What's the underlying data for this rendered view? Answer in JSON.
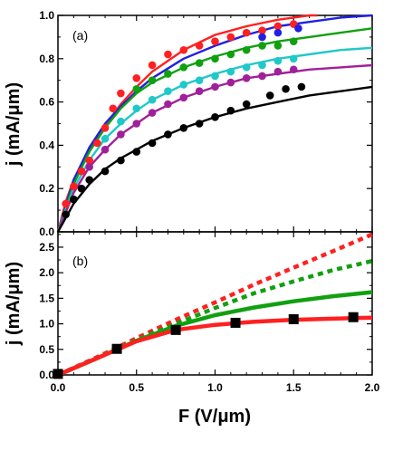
{
  "chart_data": [
    {
      "type": "scatter",
      "panel_label": "(a)",
      "xlabel": "",
      "ylabel": "j  (mA/μm)",
      "xlim": [
        0,
        2.0
      ],
      "ylim": [
        0,
        1.0
      ],
      "xticks": [
        "0.0",
        "0.5",
        "1.0",
        "1.5",
        "2.0"
      ],
      "yticks": [
        "0.0",
        "0.2",
        "0.4",
        "0.6",
        "0.8",
        "1.0"
      ],
      "grid": false,
      "series": [
        {
          "color": "#ff2020",
          "points": [
            [
              0.05,
              0.13
            ],
            [
              0.1,
              0.21
            ],
            [
              0.15,
              0.28
            ],
            [
              0.2,
              0.33
            ],
            [
              0.25,
              0.41
            ],
            [
              0.3,
              0.48
            ],
            [
              0.35,
              0.57
            ],
            [
              0.4,
              0.64
            ],
            [
              0.5,
              0.71
            ],
            [
              0.6,
              0.77
            ],
            [
              0.7,
              0.82
            ],
            [
              0.8,
              0.84
            ],
            [
              0.9,
              0.86
            ],
            [
              1.0,
              0.88
            ],
            [
              1.1,
              0.9
            ],
            [
              1.2,
              0.92
            ],
            [
              1.3,
              0.93
            ],
            [
              1.4,
              0.95
            ],
            [
              1.5,
              0.96
            ]
          ],
          "fit": [
            [
              0,
              0
            ],
            [
              0.05,
              0.14
            ],
            [
              0.1,
              0.24
            ],
            [
              0.2,
              0.38
            ],
            [
              0.3,
              0.49
            ],
            [
              0.4,
              0.59
            ],
            [
              0.5,
              0.67
            ],
            [
              0.6,
              0.74
            ],
            [
              0.8,
              0.84
            ],
            [
              1.0,
              0.91
            ],
            [
              1.2,
              0.95
            ],
            [
              1.4,
              0.98
            ],
            [
              1.6,
              1.0
            ],
            [
              1.65,
              1.0
            ]
          ]
        },
        {
          "color": "#2020e0",
          "points": [
            [
              1.3,
              0.9
            ],
            [
              1.4,
              0.92
            ],
            [
              1.53,
              0.94
            ]
          ],
          "fit": [
            [
              0,
              0
            ],
            [
              0.1,
              0.24
            ],
            [
              0.2,
              0.39
            ],
            [
              0.3,
              0.5
            ],
            [
              0.4,
              0.58
            ],
            [
              0.5,
              0.65
            ],
            [
              0.6,
              0.71
            ],
            [
              0.8,
              0.8
            ],
            [
              1.0,
              0.86
            ],
            [
              1.2,
              0.91
            ],
            [
              1.4,
              0.95
            ],
            [
              1.6,
              0.97
            ],
            [
              1.8,
              0.99
            ],
            [
              2.0,
              1.0
            ]
          ]
        },
        {
          "color": "#10a010",
          "points": [
            [
              0.5,
              0.66
            ],
            [
              0.6,
              0.7
            ],
            [
              0.7,
              0.73
            ],
            [
              0.8,
              0.76
            ],
            [
              0.9,
              0.78
            ],
            [
              1.0,
              0.8
            ],
            [
              1.1,
              0.82
            ],
            [
              1.2,
              0.84
            ],
            [
              1.3,
              0.86
            ],
            [
              1.4,
              0.86
            ],
            [
              1.5,
              0.88
            ]
          ],
          "fit": [
            [
              0,
              0
            ],
            [
              0.1,
              0.22
            ],
            [
              0.2,
              0.37
            ],
            [
              0.3,
              0.48
            ],
            [
              0.4,
              0.57
            ],
            [
              0.5,
              0.64
            ],
            [
              0.6,
              0.69
            ],
            [
              0.8,
              0.76
            ],
            [
              1.0,
              0.81
            ],
            [
              1.2,
              0.85
            ],
            [
              1.4,
              0.88
            ],
            [
              1.6,
              0.9
            ],
            [
              1.8,
              0.92
            ],
            [
              2.0,
              0.94
            ]
          ]
        },
        {
          "color": "#20c8c8",
          "points": [
            [
              0.3,
              0.43
            ],
            [
              0.4,
              0.51
            ],
            [
              0.5,
              0.57
            ],
            [
              0.6,
              0.61
            ],
            [
              0.7,
              0.65
            ],
            [
              0.8,
              0.68
            ],
            [
              0.9,
              0.7
            ],
            [
              1.0,
              0.72
            ],
            [
              1.1,
              0.74
            ],
            [
              1.2,
              0.76
            ],
            [
              1.3,
              0.77
            ],
            [
              1.4,
              0.79
            ],
            [
              1.5,
              0.8
            ]
          ],
          "fit": [
            [
              0,
              0
            ],
            [
              0.1,
              0.2
            ],
            [
              0.2,
              0.33
            ],
            [
              0.3,
              0.43
            ],
            [
              0.4,
              0.5
            ],
            [
              0.5,
              0.56
            ],
            [
              0.6,
              0.61
            ],
            [
              0.8,
              0.68
            ],
            [
              1.0,
              0.73
            ],
            [
              1.2,
              0.77
            ],
            [
              1.4,
              0.8
            ],
            [
              1.6,
              0.82
            ],
            [
              1.8,
              0.84
            ],
            [
              2.0,
              0.85
            ]
          ]
        },
        {
          "color": "#a0209a",
          "points": [
            [
              0.2,
              0.3
            ],
            [
              0.3,
              0.38
            ],
            [
              0.4,
              0.45
            ],
            [
              0.5,
              0.5
            ],
            [
              0.6,
              0.55
            ],
            [
              0.7,
              0.59
            ],
            [
              0.8,
              0.62
            ],
            [
              0.9,
              0.65
            ],
            [
              1.0,
              0.67
            ],
            [
              1.1,
              0.69
            ],
            [
              1.2,
              0.71
            ],
            [
              1.3,
              0.72
            ],
            [
              1.4,
              0.74
            ],
            [
              1.5,
              0.75
            ]
          ],
          "fit": [
            [
              0,
              0
            ],
            [
              0.1,
              0.18
            ],
            [
              0.2,
              0.3
            ],
            [
              0.3,
              0.38
            ],
            [
              0.4,
              0.45
            ],
            [
              0.5,
              0.5
            ],
            [
              0.6,
              0.55
            ],
            [
              0.8,
              0.62
            ],
            [
              1.0,
              0.67
            ],
            [
              1.2,
              0.71
            ],
            [
              1.4,
              0.73
            ],
            [
              1.6,
              0.75
            ],
            [
              1.8,
              0.76
            ],
            [
              2.0,
              0.77
            ]
          ]
        },
        {
          "color": "#000000",
          "points": [
            [
              0.05,
              0.08
            ],
            [
              0.1,
              0.15
            ],
            [
              0.15,
              0.2
            ],
            [
              0.2,
              0.24
            ],
            [
              0.3,
              0.28
            ],
            [
              0.4,
              0.33
            ],
            [
              0.5,
              0.37
            ],
            [
              0.6,
              0.41
            ],
            [
              0.7,
              0.45
            ],
            [
              0.8,
              0.48
            ],
            [
              0.9,
              0.5
            ],
            [
              1.0,
              0.53
            ],
            [
              1.1,
              0.56
            ],
            [
              1.2,
              0.59
            ],
            [
              1.35,
              0.63
            ],
            [
              1.45,
              0.66
            ],
            [
              1.55,
              0.67
            ]
          ],
          "fit": [
            [
              0,
              0
            ],
            [
              0.1,
              0.13
            ],
            [
              0.2,
              0.22
            ],
            [
              0.3,
              0.29
            ],
            [
              0.4,
              0.34
            ],
            [
              0.5,
              0.38
            ],
            [
              0.6,
              0.42
            ],
            [
              0.8,
              0.48
            ],
            [
              1.0,
              0.53
            ],
            [
              1.2,
              0.57
            ],
            [
              1.4,
              0.6
            ],
            [
              1.6,
              0.63
            ],
            [
              1.8,
              0.65
            ],
            [
              2.0,
              0.67
            ]
          ]
        }
      ]
    },
    {
      "type": "line",
      "panel_label": "(b)",
      "xlabel": "F  (V/μm)",
      "ylabel": "j  (mA/μm)",
      "xlim": [
        0,
        2.0
      ],
      "ylim": [
        0,
        2.8
      ],
      "xticks": [
        "0.0",
        "0.5",
        "1.0",
        "1.5",
        "2.0"
      ],
      "yticks": [
        "0.0",
        "0.5",
        "1.0",
        "1.5",
        "2.0",
        "2.5"
      ],
      "grid": false,
      "series": [
        {
          "color": "#ff2020",
          "style": "dotted",
          "points": [
            [
              0,
              0
            ],
            [
              0.25,
              0.35
            ],
            [
              0.5,
              0.72
            ],
            [
              0.75,
              1.08
            ],
            [
              1.0,
              1.42
            ],
            [
              1.25,
              1.77
            ],
            [
              1.5,
              2.1
            ],
            [
              1.75,
              2.42
            ],
            [
              2.0,
              2.75
            ]
          ]
        },
        {
          "color": "#10a010",
          "style": "dotted",
          "points": [
            [
              0,
              0
            ],
            [
              0.25,
              0.33
            ],
            [
              0.5,
              0.68
            ],
            [
              0.75,
              1.0
            ],
            [
              1.0,
              1.31
            ],
            [
              1.25,
              1.6
            ],
            [
              1.5,
              1.83
            ],
            [
              1.75,
              2.05
            ],
            [
              2.0,
              2.23
            ]
          ]
        },
        {
          "color": "#10a010",
          "style": "solid",
          "points": [
            [
              0,
              0
            ],
            [
              0.25,
              0.33
            ],
            [
              0.5,
              0.67
            ],
            [
              0.75,
              0.96
            ],
            [
              1.0,
              1.17
            ],
            [
              1.25,
              1.32
            ],
            [
              1.5,
              1.44
            ],
            [
              1.75,
              1.54
            ],
            [
              2.0,
              1.62
            ]
          ]
        },
        {
          "color": "#ff2020",
          "style": "solid",
          "points": [
            [
              0,
              0
            ],
            [
              0.25,
              0.33
            ],
            [
              0.5,
              0.66
            ],
            [
              0.75,
              0.88
            ],
            [
              1.0,
              0.98
            ],
            [
              1.25,
              1.04
            ],
            [
              1.5,
              1.08
            ],
            [
              1.75,
              1.1
            ],
            [
              2.0,
              1.12
            ]
          ]
        },
        {
          "color": "#000000",
          "style": "markers",
          "points": [
            [
              0.0,
              0.02
            ],
            [
              0.375,
              0.51
            ],
            [
              0.75,
              0.88
            ],
            [
              1.13,
              1.02
            ],
            [
              1.5,
              1.09
            ],
            [
              1.88,
              1.13
            ]
          ]
        }
      ]
    }
  ]
}
